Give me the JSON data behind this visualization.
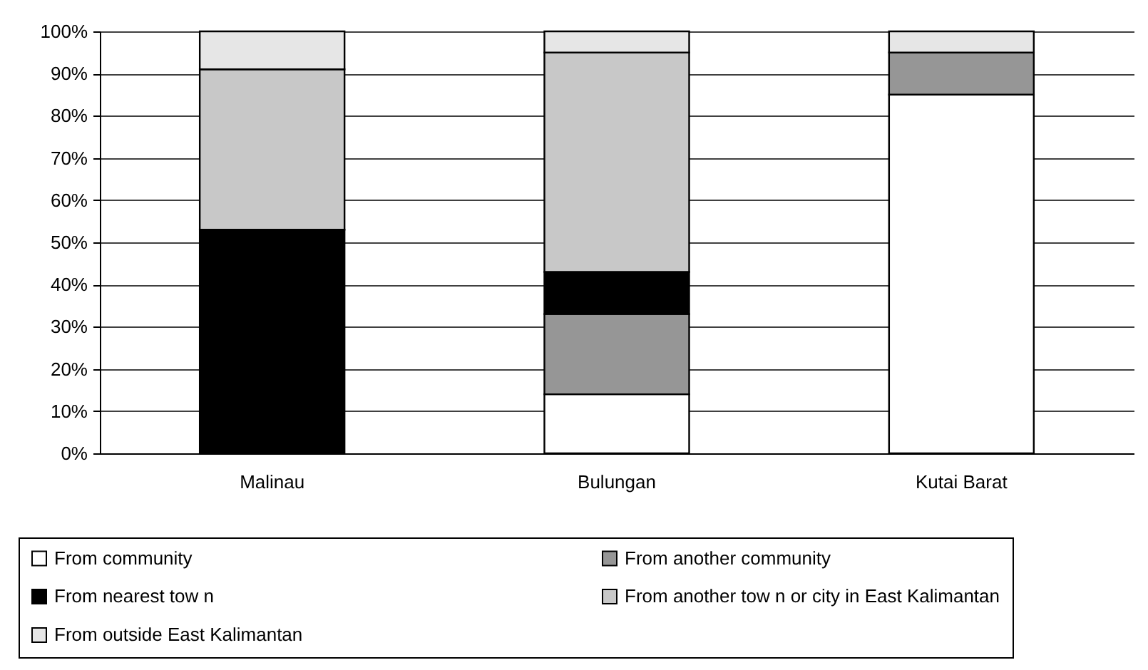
{
  "chart_data": {
    "type": "bar",
    "stacked": true,
    "categories": [
      "Malinau",
      "Bulungan",
      "Kutai Barat"
    ],
    "series": [
      {
        "name": "From community",
        "color": "#ffffff",
        "values": [
          0,
          14,
          85
        ]
      },
      {
        "name": "From another community",
        "color": "#969696",
        "values": [
          0,
          19,
          10
        ]
      },
      {
        "name": "From nearest tow n",
        "color": "#000000",
        "values": [
          53,
          10,
          0
        ]
      },
      {
        "name": "From another tow n or city in East Kalimantan",
        "color": "#c8c8c8",
        "values": [
          38,
          52,
          0
        ]
      },
      {
        "name": "From outside East Kalimantan",
        "color": "#e6e6e6",
        "values": [
          9,
          5,
          5
        ]
      }
    ],
    "ylim": [
      0,
      100
    ],
    "yticks": [
      {
        "value": 0,
        "label": "0%"
      },
      {
        "value": 10,
        "label": "10%"
      },
      {
        "value": 20,
        "label": "20%"
      },
      {
        "value": 30,
        "label": "30%"
      },
      {
        "value": 40,
        "label": "40%"
      },
      {
        "value": 50,
        "label": "50%"
      },
      {
        "value": 60,
        "label": "60%"
      },
      {
        "value": 70,
        "label": "70%"
      },
      {
        "value": 80,
        "label": "80%"
      },
      {
        "value": 90,
        "label": "90%"
      },
      {
        "value": 100,
        "label": "100%"
      }
    ],
    "grid": "y",
    "legend": "bottom"
  }
}
